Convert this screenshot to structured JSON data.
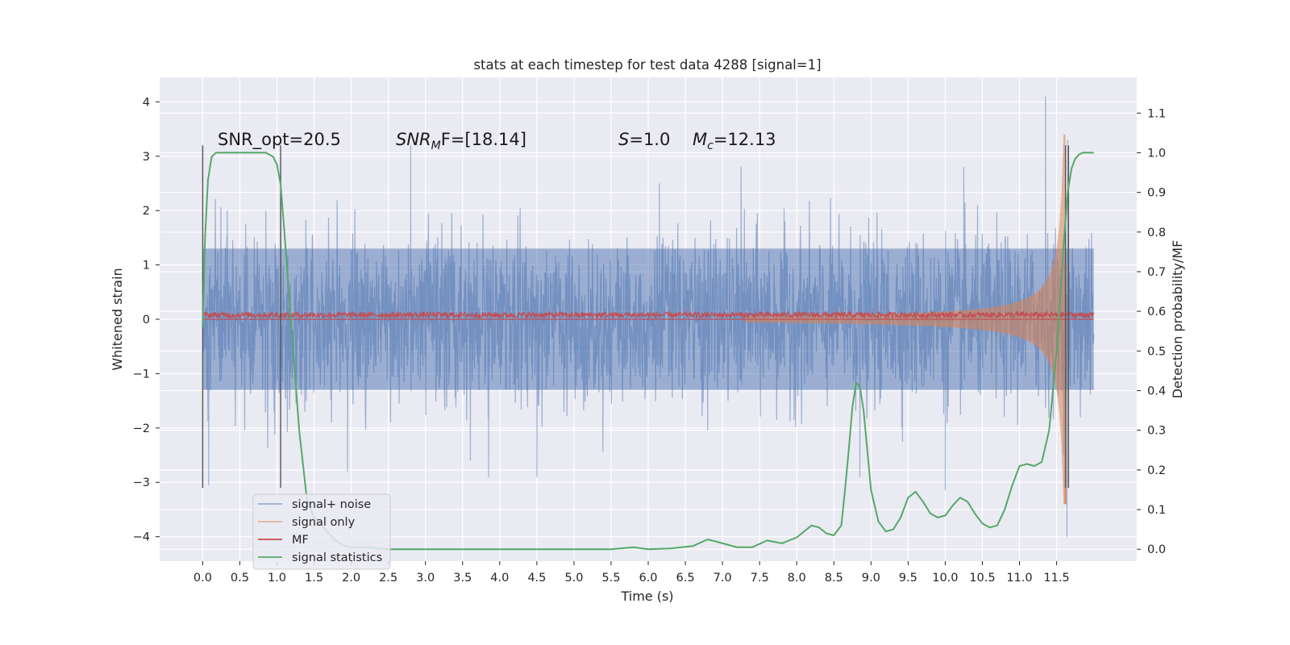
{
  "chart_data": {
    "type": "line",
    "title": "stats at each timestep for test data 4288 [signal=1]",
    "xlabel": "Time (s)",
    "ylabel": "Whitened strain",
    "ylabel_right": "Detection probability/MF",
    "xlim": [
      -0.58,
      12.58
    ],
    "ylim": [
      -4.45,
      4.45
    ],
    "ylim_right": [
      -0.03,
      1.19
    ],
    "grid": true,
    "legend_position": "lower-left",
    "x_ticks": [
      "0.0",
      "0.5",
      "1.0",
      "1.5",
      "2.0",
      "2.5",
      "3.0",
      "3.5",
      "4.0",
      "4.5",
      "5.0",
      "5.5",
      "6.0",
      "6.5",
      "7.0",
      "7.5",
      "8.0",
      "8.5",
      "9.0",
      "9.5",
      "10.0",
      "10.5",
      "11.0",
      "11.5"
    ],
    "y_ticks": [
      "4",
      "3",
      "2",
      "1",
      "0",
      "−1",
      "−2",
      "−3",
      "−4"
    ],
    "y_ticks_right": [
      "0.0",
      "0.1",
      "0.2",
      "0.3",
      "0.4",
      "0.5",
      "0.6",
      "0.7",
      "0.8",
      "0.9",
      "1.0",
      "1.1"
    ],
    "annotations": {
      "snr_opt": "SNR_opt=20.5",
      "snr_mf_label": "SNR",
      "snr_mf_sub": "M",
      "snr_mf_rest": "F=[18.14]",
      "s_label": "S",
      "s_value": "=1.0",
      "mc_label": "M",
      "mc_sub": "c",
      "mc_value": "=12.13"
    },
    "vertical_markers": [
      {
        "x": 0.0,
        "y_range": [
          -3.1,
          3.2
        ]
      },
      {
        "x": 1.05,
        "y_range": [
          -3.1,
          3.2
        ]
      },
      {
        "x": 11.62,
        "y_range": [
          -3.1,
          3.2
        ]
      },
      {
        "x": 11.66,
        "y_range": [
          -3.1,
          3.2
        ]
      }
    ],
    "series": [
      {
        "name": "signal+ noise",
        "color": "#4c72b0",
        "opacity": 0.5,
        "x_range": [
          0.0,
          12.0
        ],
        "envelope": 1.3,
        "peaks": [
          [
            0.33,
            2.0
          ],
          [
            0.85,
            2.0
          ],
          [
            1.05,
            2.6
          ],
          [
            2.8,
            3.2
          ],
          [
            6.15,
            2.5
          ],
          [
            7.25,
            2.8
          ],
          [
            10.25,
            2.8
          ],
          [
            11.35,
            4.1
          ],
          [
            11.65,
            3.3
          ],
          [
            0.08,
            -3.05
          ],
          [
            1.95,
            -2.8
          ],
          [
            3.85,
            -2.9
          ],
          [
            4.5,
            -2.9
          ],
          [
            8.85,
            -2.9
          ],
          [
            10.0,
            -3.15
          ],
          [
            11.64,
            -4.0
          ]
        ]
      },
      {
        "name": "signal only",
        "color": "#dd8452",
        "opacity": 0.55,
        "chirp_start": 7.3,
        "chirp_end": 11.62,
        "peak_amplitude": 3.4
      },
      {
        "name": "MF",
        "color": "#c44e52",
        "baseline": 0.08,
        "noise": 0.05
      },
      {
        "name": "signal statistics",
        "color": "#55a868",
        "axis": "right",
        "x": [
          0.0,
          0.03,
          0.07,
          0.12,
          0.18,
          0.3,
          0.5,
          0.7,
          0.85,
          0.95,
          1.0,
          1.05,
          1.1,
          1.2,
          1.3,
          1.4,
          1.5,
          1.6,
          1.7,
          1.8,
          1.9,
          2.0,
          2.2,
          2.5,
          3.0,
          3.5,
          4.0,
          4.5,
          5.0,
          5.5,
          5.8,
          6.0,
          6.3,
          6.6,
          6.8,
          6.9,
          7.0,
          7.2,
          7.4,
          7.6,
          7.8,
          8.0,
          8.1,
          8.2,
          8.3,
          8.4,
          8.5,
          8.6,
          8.65,
          8.7,
          8.75,
          8.8,
          8.85,
          8.9,
          8.95,
          9.0,
          9.1,
          9.2,
          9.3,
          9.4,
          9.5,
          9.6,
          9.7,
          9.8,
          9.9,
          10.0,
          10.1,
          10.2,
          10.3,
          10.4,
          10.5,
          10.6,
          10.7,
          10.8,
          10.9,
          11.0,
          11.1,
          11.2,
          11.3,
          11.4,
          11.5,
          11.6,
          11.65,
          11.7,
          11.75,
          11.8,
          11.85,
          11.9,
          11.95,
          12.0
        ],
        "y": [
          0.56,
          0.78,
          0.93,
          0.99,
          1.0,
          1.0,
          1.0,
          1.0,
          1.0,
          0.99,
          0.97,
          0.92,
          0.8,
          0.55,
          0.3,
          0.13,
          0.08,
          0.06,
          0.04,
          0.02,
          0.01,
          0.005,
          0.005,
          0.0,
          0.0,
          0.0,
          0.0,
          0.0,
          0.0,
          0.0,
          0.005,
          0.0,
          0.002,
          0.008,
          0.025,
          0.02,
          0.015,
          0.005,
          0.005,
          0.022,
          0.015,
          0.03,
          0.045,
          0.06,
          0.055,
          0.04,
          0.035,
          0.06,
          0.15,
          0.25,
          0.36,
          0.42,
          0.41,
          0.35,
          0.25,
          0.15,
          0.07,
          0.045,
          0.05,
          0.08,
          0.13,
          0.145,
          0.12,
          0.09,
          0.08,
          0.085,
          0.11,
          0.13,
          0.12,
          0.09,
          0.065,
          0.055,
          0.06,
          0.1,
          0.16,
          0.21,
          0.215,
          0.21,
          0.22,
          0.3,
          0.5,
          0.78,
          0.9,
          0.96,
          0.985,
          0.995,
          1.0,
          1.0,
          1.0,
          1.0
        ]
      }
    ]
  }
}
